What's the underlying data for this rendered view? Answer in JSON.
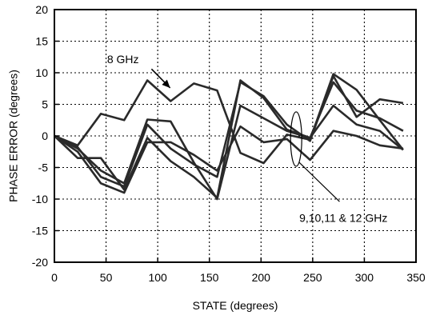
{
  "chart_data": {
    "type": "line",
    "title": "",
    "xlabel": "STATE (degrees)",
    "ylabel": "PHASE ERROR  (degrees)",
    "xlim": [
      0,
      350
    ],
    "ylim": [
      -20,
      20
    ],
    "xticks": [
      0,
      50,
      100,
      150,
      200,
      250,
      300,
      350
    ],
    "yticks": [
      20,
      15,
      10,
      5,
      0,
      -5,
      -10,
      -15,
      -20
    ],
    "grid": "dotted",
    "line_color": "#2a2a2a",
    "x": [
      0,
      22.5,
      45,
      67.5,
      90,
      112.5,
      135,
      157.5,
      180,
      202.5,
      225,
      247.5,
      270,
      292.5,
      315,
      337.5
    ],
    "series": [
      {
        "values": [
          0,
          -1.5,
          3.5,
          2.5,
          8.8,
          5.5,
          8.3,
          7.2,
          -2.7,
          -4.3,
          0.2,
          -0.6,
          9.8,
          7.3,
          2.5,
          -2.2
        ]
      },
      {
        "values": [
          0,
          -1.8,
          -6.5,
          -8.0,
          1.8,
          -2.0,
          -4.5,
          -6.5,
          8.5,
          6.3,
          1.8,
          -0.8,
          9.5,
          3.0,
          5.8,
          5.2
        ]
      },
      {
        "values": [
          0,
          -2.0,
          -5.5,
          -7.5,
          2.6,
          2.3,
          -4.2,
          -10.0,
          4.8,
          2.8,
          0.8,
          -0.3,
          4.8,
          1.8,
          0.8,
          -2.2
        ]
      },
      {
        "values": [
          0,
          -3.5,
          -3.5,
          -8.5,
          -0.3,
          -4.0,
          -6.5,
          -9.8,
          8.8,
          6.0,
          1.0,
          -0.3,
          8.5,
          4.0,
          2.8,
          0.8
        ]
      },
      {
        "values": [
          0,
          -2.5,
          -7.5,
          -9.0,
          -1.0,
          -1.0,
          -3.0,
          -5.5,
          1.5,
          -1.0,
          -0.5,
          -3.8,
          0.8,
          0.0,
          -1.5,
          -2.0
        ]
      }
    ],
    "annotations": {
      "label_8ghz": "8 GHz",
      "label_9to12": "9,10,11 & 12 GHz"
    }
  }
}
